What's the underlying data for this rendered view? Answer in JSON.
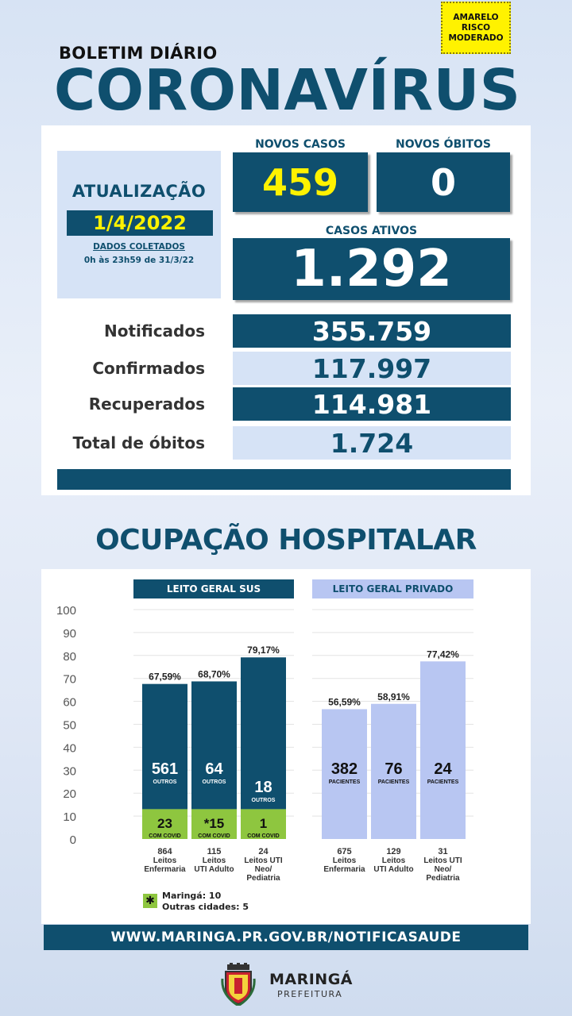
{
  "risk": {
    "text": "AMARELO\nRISCO\nMODERADO",
    "color": "#fff200"
  },
  "header": {
    "kicker": "BOLETIM DIÁRIO",
    "title": "CORONAVÍRUS"
  },
  "update": {
    "label": "ATUALIZAÇÃO",
    "date": "1/4/2022",
    "collected_title": "DADOS COLETADOS",
    "collected_range": "0h às 23h59 de 31/3/22"
  },
  "new_cases": {
    "label": "NOVOS CASOS",
    "value": "459"
  },
  "new_deaths": {
    "label": "NOVOS ÓBITOS",
    "value": "0"
  },
  "active_cases": {
    "label": "CASOS ATIVOS",
    "value": "1.292"
  },
  "totals": [
    {
      "label": "Notificados",
      "value": "355.759"
    },
    {
      "label": "Confirmados",
      "value": "117.997"
    },
    {
      "label": "Recuperados",
      "value": "114.981"
    },
    {
      "label": "Total de óbitos",
      "value": "1.724"
    }
  ],
  "hospital": {
    "title": "OCUPAÇÃO HOSPITALAR",
    "sus_header": "LEITO GERAL SUS",
    "private_header": "LEITO GERAL PRIVADO",
    "legend_symbol": "✱",
    "legend_lines": [
      "Maringá: 10",
      "Outras cidades: 5"
    ]
  },
  "chart_data": {
    "type": "bar",
    "ylim": [
      0,
      100
    ],
    "y_ticks": [
      "100",
      "90",
      "80",
      "70",
      "60",
      "50",
      "40",
      "30",
      "20",
      "10",
      "0"
    ],
    "colors": {
      "sus": "#0f4f6e",
      "covid": "#8ec63f",
      "private": "#b8c6f2"
    },
    "groups": [
      {
        "name": "LEITO GERAL SUS",
        "bars": [
          {
            "occupancy": 67.59,
            "pct_label": "67,59%",
            "covid_value": 13,
            "others": "561",
            "others_label": "OUTROS",
            "covid": "23",
            "covid_label": "COM COVID",
            "beds": "864",
            "cat": [
              "Leitos",
              "Enfermaria"
            ]
          },
          {
            "occupancy": 68.7,
            "pct_label": "68,70%",
            "covid_value": 13,
            "others": "64",
            "others_label": "OUTROS",
            "covid": "*15",
            "covid_label": "COM COVID",
            "beds": "115",
            "cat": [
              "Leitos",
              "UTI Adulto"
            ]
          },
          {
            "occupancy": 79.17,
            "pct_label": "79,17%",
            "covid_value": 13,
            "others": "18",
            "others_label": "OUTROS",
            "covid": "1",
            "covid_label": "COM COVID",
            "beds": "24",
            "cat": [
              "Leitos UTI",
              "Neo/",
              "Pediatria"
            ]
          }
        ]
      },
      {
        "name": "LEITO GERAL PRIVADO",
        "bars": [
          {
            "occupancy": 56.59,
            "pct_label": "56,59%",
            "patients": "382",
            "patients_label": "PACIENTES",
            "beds": "675",
            "cat": [
              "Leitos",
              "Enfermaria"
            ]
          },
          {
            "occupancy": 58.91,
            "pct_label": "58,91%",
            "patients": "76",
            "patients_label": "PACIENTES",
            "beds": "129",
            "cat": [
              "Leitos",
              "UTI Adulto"
            ]
          },
          {
            "occupancy": 77.42,
            "pct_label": "77,42%",
            "patients": "24",
            "patients_label": "PACIENTES",
            "beds": "31",
            "cat": [
              "Leitos UTI",
              "Neo/",
              "Pediatria"
            ]
          }
        ]
      }
    ]
  },
  "footer": {
    "url": "WWW.MARINGA.PR.GOV.BR/NOTIFICASAUDE",
    "brand": "MARINGÁ",
    "brand_sub": "PREFEITURA"
  }
}
